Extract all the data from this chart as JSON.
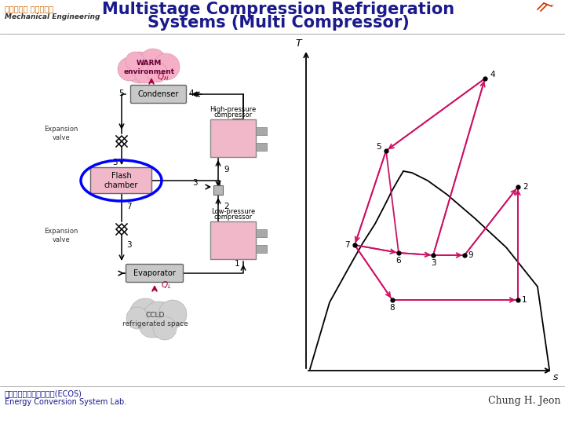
{
  "title_line1": "Multistage Compression Refrigeration",
  "title_line2": "Systems (Multi Compressor)",
  "title_color": "#1a1a8c",
  "title_fontsize": 15,
  "header_left_line1": "부산대학교 기계공학부",
  "header_left_line2": "Mechanical Engineering",
  "header_left_color_1": "#cc6600",
  "header_left_color_2": "#333333",
  "footer_left_line1": "에너지변환시스템연구실(ECOS)",
  "footer_left_line2": "Energy Conversion System Lab.",
  "footer_right": "Chung H. Jeon",
  "footer_color": "#1a1a8c",
  "bg_color": "#ffffff",
  "warm_cloud_color": "#f5b0c8",
  "ccld_cloud_color": "#d0d0d0",
  "box_gray": "#c8c8c8",
  "box_pink": "#f0b8c8",
  "compressor_gray": "#a8a8a8",
  "line_color": "#000000",
  "process_color": "#cc1166",
  "ts_axis_color": "#000000"
}
